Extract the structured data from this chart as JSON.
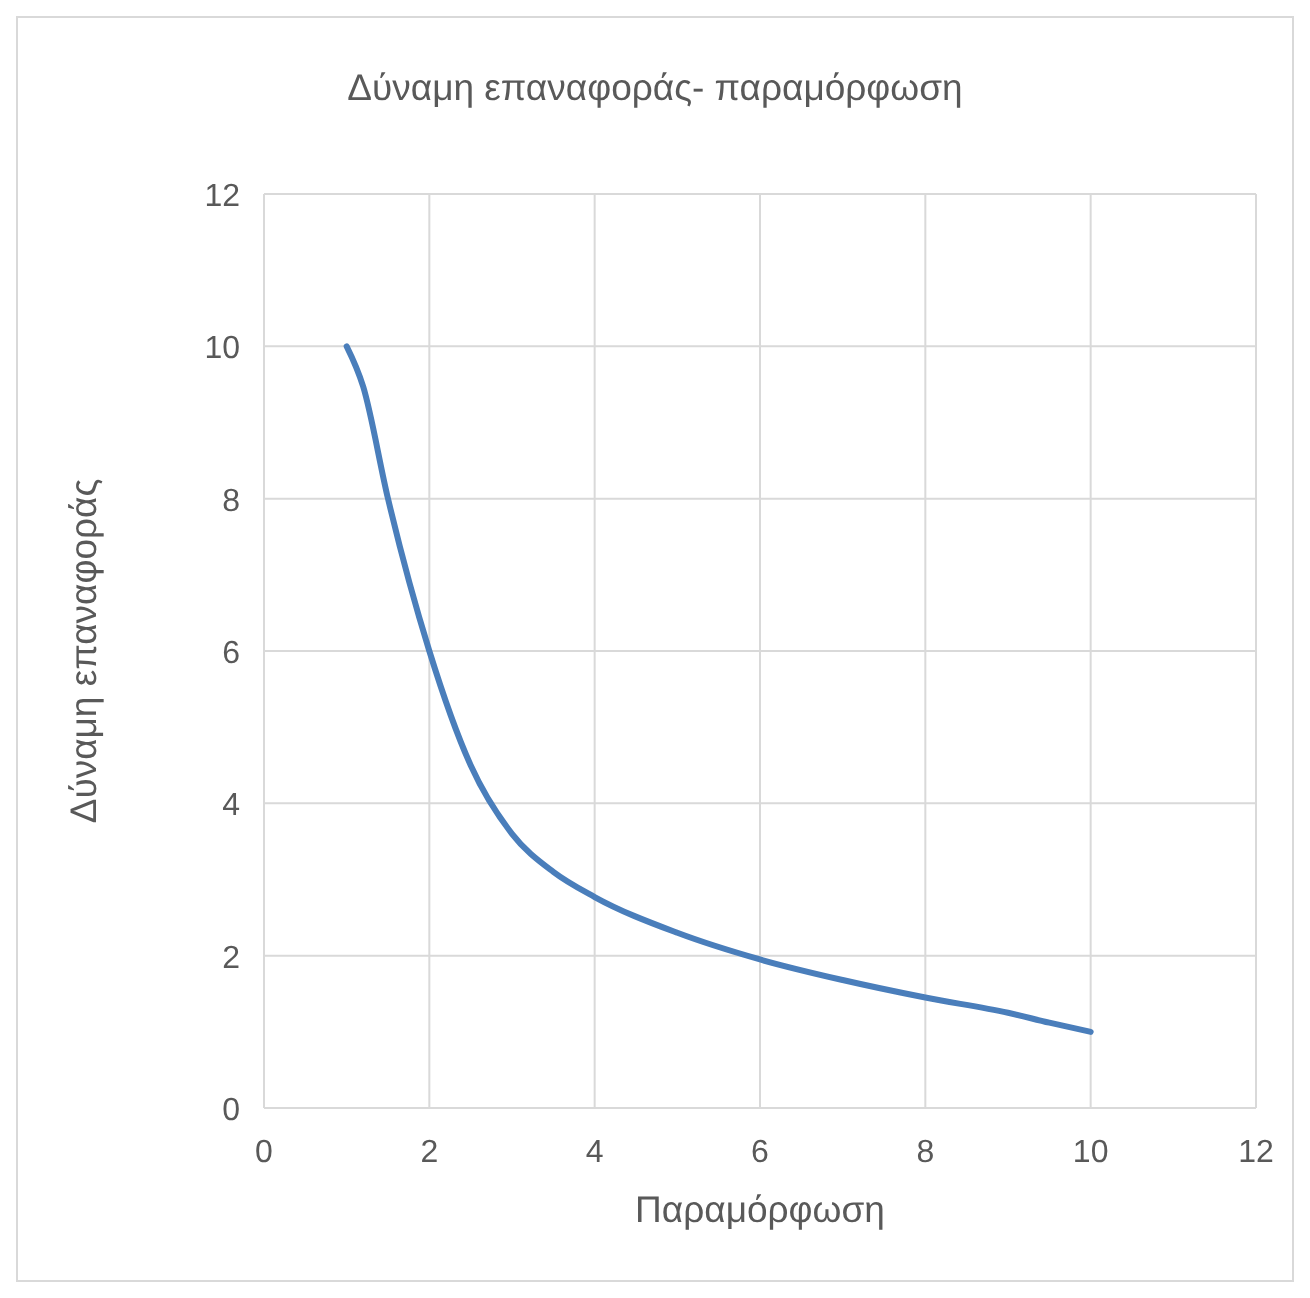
{
  "chart_data": {
    "type": "line",
    "title": "Δύναμη επαναφοράς- παραμόρφωση",
    "xlabel": "Παραμόρφωση",
    "ylabel": "Δύναμη επαναφοράς",
    "series": [
      {
        "color": "#4a7ebb",
        "x": [
          1,
          1.2,
          1.5,
          2,
          2.5,
          3,
          3.5,
          4,
          5,
          6,
          7,
          8,
          9,
          9.5,
          10
        ],
        "values": [
          10,
          9.47,
          8,
          6,
          4.5,
          3.6,
          3.1,
          2.77,
          2.3,
          1.95,
          1.68,
          1.45,
          1.25,
          1.12,
          1
        ]
      }
    ],
    "xlim": [
      0,
      12
    ],
    "xticks": [
      0,
      2,
      4,
      6,
      8,
      10,
      12
    ],
    "ylim": [
      0,
      12
    ],
    "yticks": [
      0,
      2,
      4,
      6,
      8,
      10,
      12
    ],
    "grid": true,
    "marker": "none",
    "line_style": "solid"
  }
}
